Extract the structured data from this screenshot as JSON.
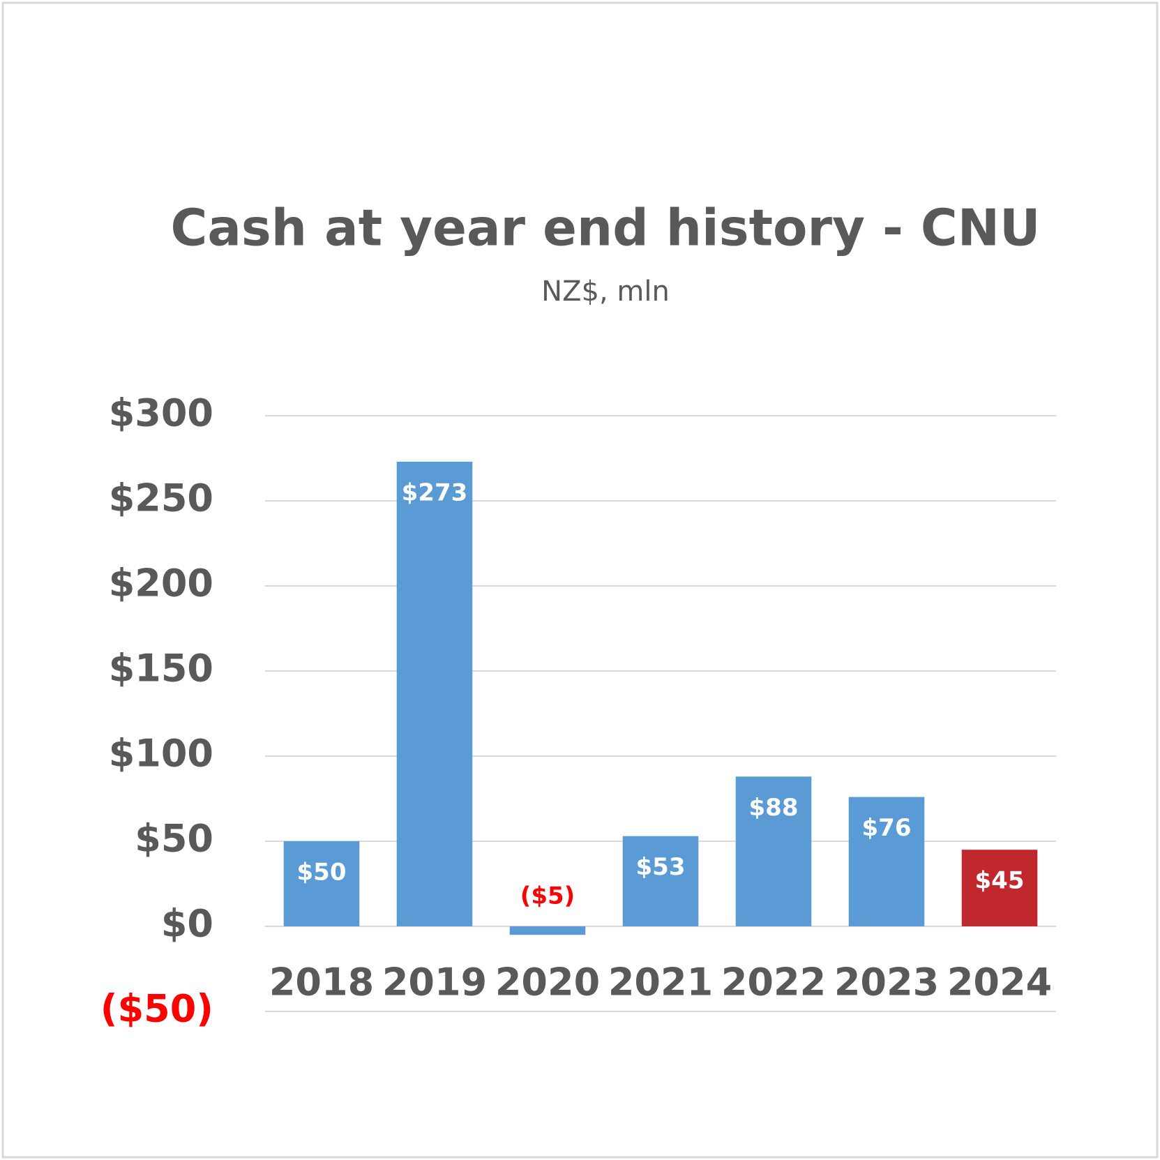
{
  "chart_data": {
    "type": "bar",
    "title": "Cash at year end history - CNU",
    "subtitle": "NZ$, mln",
    "categories": [
      "2018",
      "2019",
      "2020",
      "2021",
      "2022",
      "2023",
      "2024"
    ],
    "values": [
      50,
      273,
      -5,
      53,
      88,
      76,
      45
    ],
    "value_labels": [
      "$50",
      "$273",
      "($5)",
      "$53",
      "$88",
      "$76",
      "$45"
    ],
    "colors": [
      "#5b9bd5",
      "#5b9bd5",
      "#5b9bd5",
      "#5b9bd5",
      "#5b9bd5",
      "#5b9bd5",
      "#c0282d"
    ],
    "negative_color": "#ff0000",
    "ylim": [
      -50,
      300
    ],
    "yticks": [
      {
        "value": -50,
        "label": "($50)"
      },
      {
        "value": 0,
        "label": "$0"
      },
      {
        "value": 50,
        "label": "$50"
      },
      {
        "value": 100,
        "label": "$100"
      },
      {
        "value": 150,
        "label": "$150"
      },
      {
        "value": 200,
        "label": "$200"
      },
      {
        "value": 250,
        "label": "$250"
      },
      {
        "value": 300,
        "label": "$300"
      }
    ],
    "grid": true
  }
}
